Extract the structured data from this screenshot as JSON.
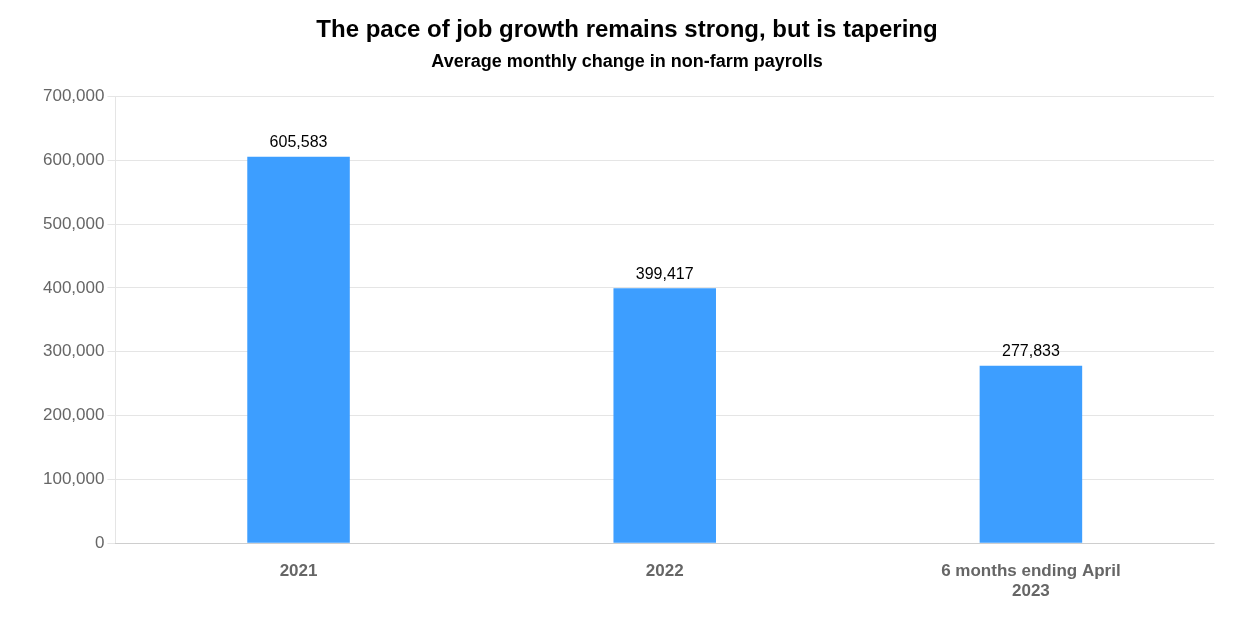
{
  "chart_data": {
    "type": "bar",
    "title": "The pace of job growth remains strong, but is tapering",
    "subtitle": "Average monthly change in non-farm payrolls",
    "categories": [
      "2021",
      "2022",
      "6 months ending April\n2023"
    ],
    "values": [
      605583,
      399417,
      277833
    ],
    "value_labels": [
      "605,583",
      "399,417",
      "277,833"
    ],
    "data_labels": true,
    "color": "#3D9EFF",
    "ylim": [
      0,
      700000
    ],
    "yticks": [
      0,
      {
        "value": 100000,
        "label": "100,000"
      },
      {
        "value": 200000,
        "label": "200,000"
      },
      {
        "value": 300000,
        "label": "300,000"
      },
      {
        "value": 400000,
        "label": "400,000"
      },
      {
        "value": 500000,
        "label": "500,000"
      },
      {
        "value": 600000,
        "label": "600,000"
      },
      {
        "value": 700000,
        "label": "700,000"
      }
    ],
    "grid": true
  }
}
